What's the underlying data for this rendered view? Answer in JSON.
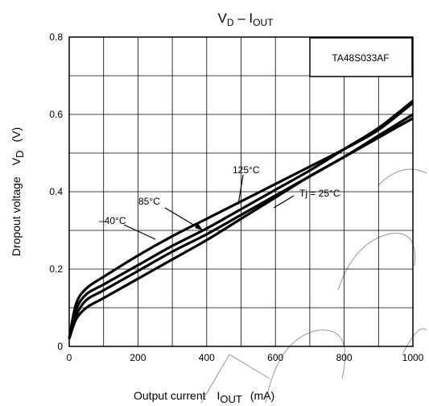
{
  "chart_data": {
    "type": "line",
    "title": {
      "main": "V",
      "main_sub": "D",
      "dash": " – I",
      "dash_sub": "OUT"
    },
    "xlabel": {
      "text": "Output current",
      "symbol": "I",
      "symbol_sub": "OUT",
      "unit": "(mA)"
    },
    "ylabel": {
      "text": "Dropout voltage",
      "symbol": "V",
      "symbol_sub": "D",
      "unit": "(V)"
    },
    "xlim": [
      0,
      1000
    ],
    "ylim": [
      0,
      0.8
    ],
    "x_ticks": [
      0,
      200,
      400,
      600,
      800,
      1000
    ],
    "x_tick_labels": [
      "0",
      "200",
      "400",
      "600",
      "800",
      "1000"
    ],
    "y_ticks": [
      0,
      0.2,
      0.4,
      0.6,
      0.8
    ],
    "y_tick_labels": [
      "0",
      "0.2",
      "0.4",
      "0.6",
      "0.8"
    ],
    "grid": {
      "x_step": 100,
      "y_step": 0.1
    },
    "legend_box": "TA48S033AF",
    "legend_placement": "top-right",
    "series": [
      {
        "name": "125°C",
        "color": "#000000",
        "x": [
          0,
          20,
          50,
          100,
          200,
          300,
          400,
          500,
          600,
          700,
          800,
          900,
          1000
        ],
        "y": [
          0.02,
          0.11,
          0.15,
          0.18,
          0.235,
          0.285,
          0.33,
          0.375,
          0.42,
          0.465,
          0.51,
          0.56,
          0.63
        ]
      },
      {
        "name": "85°C",
        "color": "#000000",
        "x": [
          0,
          20,
          50,
          100,
          200,
          300,
          400,
          500,
          600,
          700,
          800,
          900,
          1000
        ],
        "y": [
          0.02,
          0.095,
          0.135,
          0.16,
          0.21,
          0.26,
          0.305,
          0.355,
          0.405,
          0.455,
          0.51,
          0.565,
          0.635
        ]
      },
      {
        "name": "Tj = 25°C",
        "color": "#000000",
        "x": [
          0,
          20,
          50,
          100,
          200,
          300,
          400,
          500,
          600,
          700,
          800,
          900,
          1000
        ],
        "y": [
          0.02,
          0.08,
          0.12,
          0.145,
          0.195,
          0.245,
          0.29,
          0.34,
          0.39,
          0.44,
          0.49,
          0.54,
          0.59
        ]
      },
      {
        "name": "-40°C",
        "color": "#000000",
        "x": [
          0,
          20,
          50,
          100,
          200,
          300,
          400,
          500,
          600,
          700,
          800,
          900,
          1000
        ],
        "y": [
          0.02,
          0.07,
          0.1,
          0.125,
          0.175,
          0.225,
          0.275,
          0.33,
          0.385,
          0.44,
          0.49,
          0.545,
          0.6
        ]
      }
    ],
    "annotations": [
      {
        "label": "125°C",
        "x": 390,
        "y": 0.46
      },
      {
        "label": "85°C",
        "x": 175,
        "y": 0.37
      },
      {
        "label": "–40°C",
        "x": 65,
        "y": 0.31
      },
      {
        "label": "Tj = 25°C",
        "x": 750,
        "y": 0.385
      }
    ]
  }
}
